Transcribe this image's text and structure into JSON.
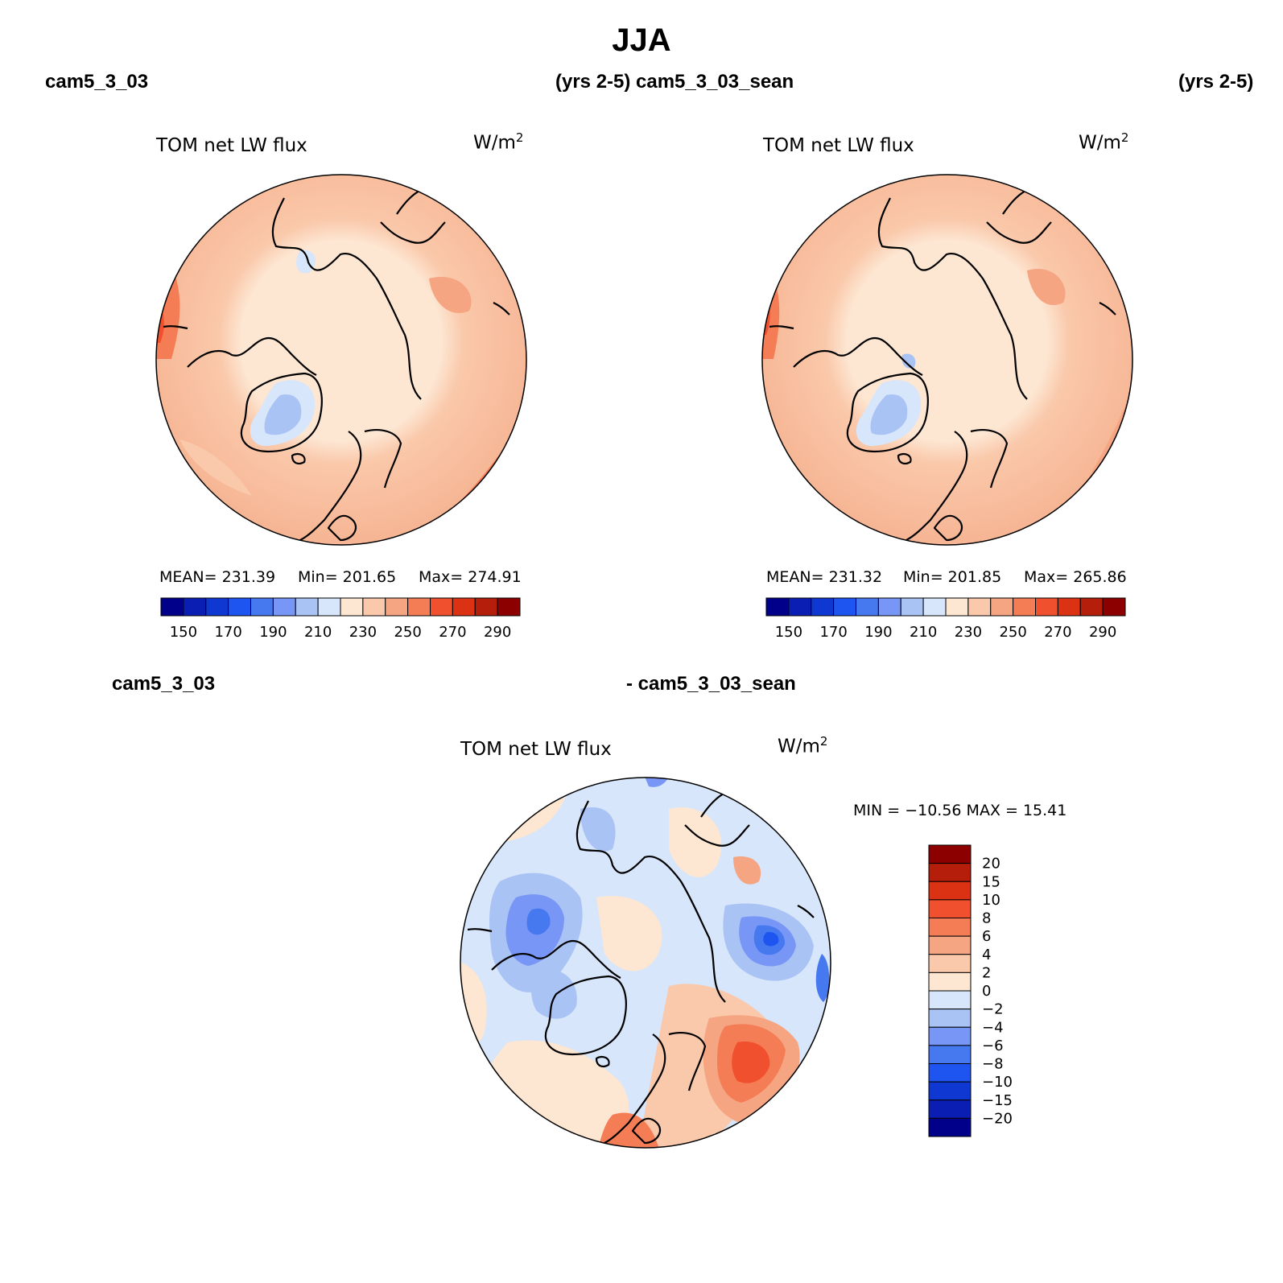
{
  "figure": {
    "season_title": "JJA",
    "left_case": "cam5_3_03",
    "left_years": "(yrs 2-5)",
    "right_case": "cam5_3_03_sean",
    "right_years": "(yrs 2-5)",
    "diff_case_a": "cam5_3_03",
    "diff_case_b": "- cam5_3_03_sean"
  },
  "panels": {
    "left": {
      "title": "TOM net LW flux",
      "units_base": "W/m",
      "units_exp": "2",
      "mean_label": "MEAN= 231.39",
      "min_label": "Min= 201.65",
      "max_label": "Max= 274.91"
    },
    "right": {
      "title": "TOM net LW flux",
      "units_base": "W/m",
      "units_exp": "2",
      "mean_label": "MEAN= 231.32",
      "min_label": "Min= 201.85",
      "max_label": "Max= 265.86"
    },
    "diff": {
      "title": "TOM net LW flux",
      "units_base": "W/m",
      "units_exp": "2",
      "minmax_label": "MIN = −10.56 MAX =   15.41"
    }
  },
  "chart_data": [
    {
      "type": "heatmap",
      "projection": "north-polar-stereographic",
      "title": "TOM net LW flux",
      "case": "cam5_3_03",
      "period": "(yrs 2-5)",
      "units": "W/m2",
      "mean": 231.39,
      "min": 201.65,
      "max": 274.91,
      "colorbar_ticks": [
        "150",
        "170",
        "190",
        "210",
        "230",
        "250",
        "270",
        "290"
      ],
      "colorbar_levels": [
        140,
        150,
        160,
        170,
        180,
        190,
        200,
        210,
        220,
        230,
        240,
        250,
        260,
        270,
        280,
        290,
        300
      ],
      "colorbar_colors": [
        "#00008b",
        "#0a1eb4",
        "#0f37d2",
        "#1e55f0",
        "#4678f0",
        "#7896f5",
        "#aac3f5",
        "#d7e6fa",
        "#fde6d2",
        "#fac8aa",
        "#f5a582",
        "#f57d55",
        "#f0502d",
        "#dc3214",
        "#b41e0a",
        "#8c0000"
      ]
    },
    {
      "type": "heatmap",
      "projection": "north-polar-stereographic",
      "title": "TOM net LW flux",
      "case": "cam5_3_03_sean",
      "period": "(yrs 2-5)",
      "units": "W/m2",
      "mean": 231.32,
      "min": 201.85,
      "max": 265.86,
      "colorbar_ticks": [
        "150",
        "170",
        "190",
        "210",
        "230",
        "250",
        "270",
        "290"
      ],
      "colorbar_levels": [
        140,
        150,
        160,
        170,
        180,
        190,
        200,
        210,
        220,
        230,
        240,
        250,
        260,
        270,
        280,
        290,
        300
      ],
      "colorbar_colors": [
        "#00008b",
        "#0a1eb4",
        "#0f37d2",
        "#1e55f0",
        "#4678f0",
        "#7896f5",
        "#aac3f5",
        "#d7e6fa",
        "#fde6d2",
        "#fac8aa",
        "#f5a582",
        "#f57d55",
        "#f0502d",
        "#dc3214",
        "#b41e0a",
        "#8c0000"
      ]
    },
    {
      "type": "heatmap",
      "projection": "north-polar-stereographic",
      "title": "TOM net LW flux",
      "case": "cam5_3_03 - cam5_3_03_sean",
      "units": "W/m2",
      "min": -10.56,
      "max": 15.41,
      "colorbar_ticks": [
        "20",
        "15",
        "10",
        "8",
        "6",
        "4",
        "2",
        "0",
        "−2",
        "−4",
        "−6",
        "−8",
        "−10",
        "−15",
        "−20"
      ],
      "colorbar_colors_top_to_bottom": [
        "#8c0000",
        "#b41e0a",
        "#dc3214",
        "#f0502d",
        "#f57d55",
        "#f5a582",
        "#fac8aa",
        "#fde6d2",
        "#d7e6fa",
        "#aac3f5",
        "#7896f5",
        "#4678f0",
        "#1e55f0",
        "#0f37d2",
        "#0a1eb4",
        "#00008b"
      ]
    }
  ]
}
